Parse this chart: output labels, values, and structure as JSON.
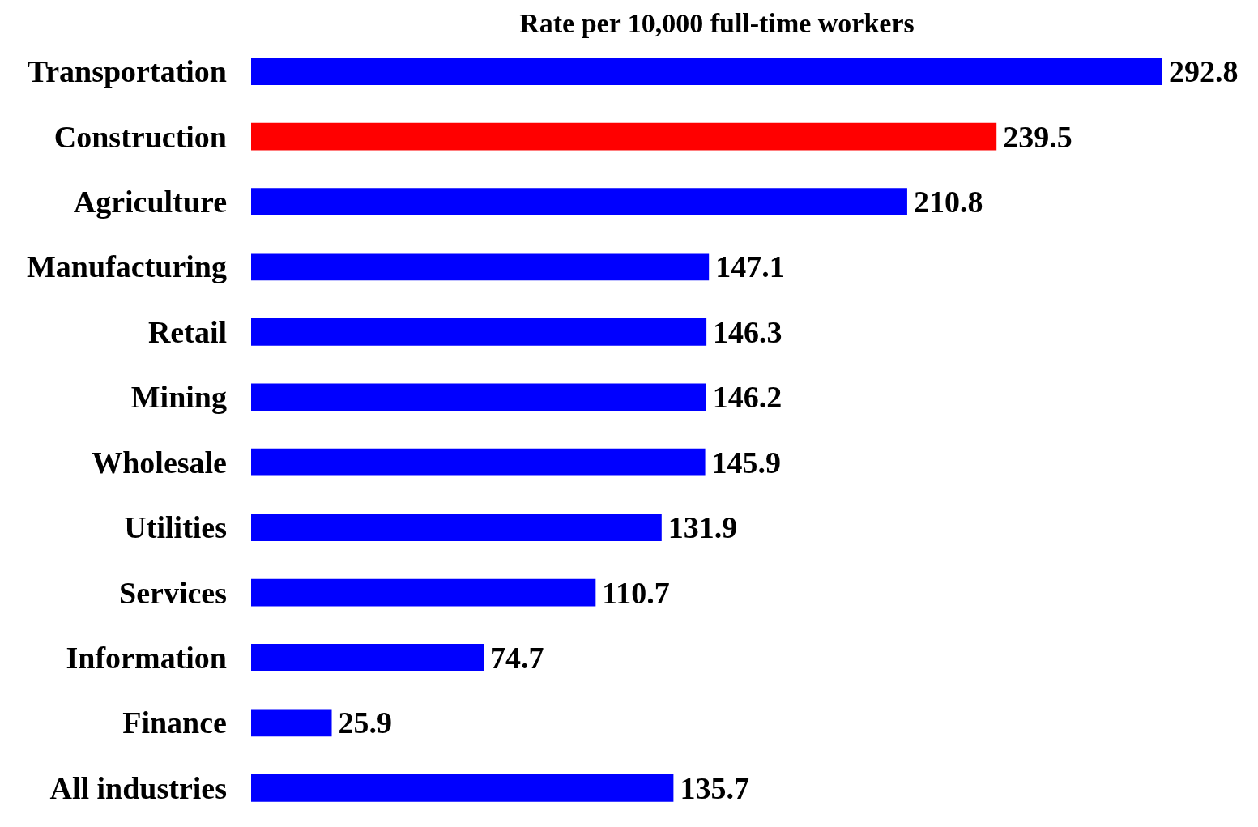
{
  "chart_data": {
    "type": "bar",
    "orientation": "horizontal",
    "title": "Rate per 10,000 full-time workers",
    "categories": [
      "Transportation",
      "Construction",
      "Agriculture",
      "Manufacturing",
      "Retail",
      "Mining",
      "Wholesale",
      "Utilities",
      "Services",
      "Information",
      "Finance",
      "All industries"
    ],
    "values": [
      292.8,
      239.5,
      210.8,
      147.1,
      146.3,
      146.2,
      145.9,
      131.9,
      110.7,
      74.7,
      25.9,
      135.7
    ],
    "colors": [
      "#0000ff",
      "#ff0000",
      "#0000ff",
      "#0000ff",
      "#0000ff",
      "#0000ff",
      "#0000ff",
      "#0000ff",
      "#0000ff",
      "#0000ff",
      "#0000ff",
      "#0000ff"
    ],
    "data_labels": true,
    "tick_labels": "y"
  }
}
